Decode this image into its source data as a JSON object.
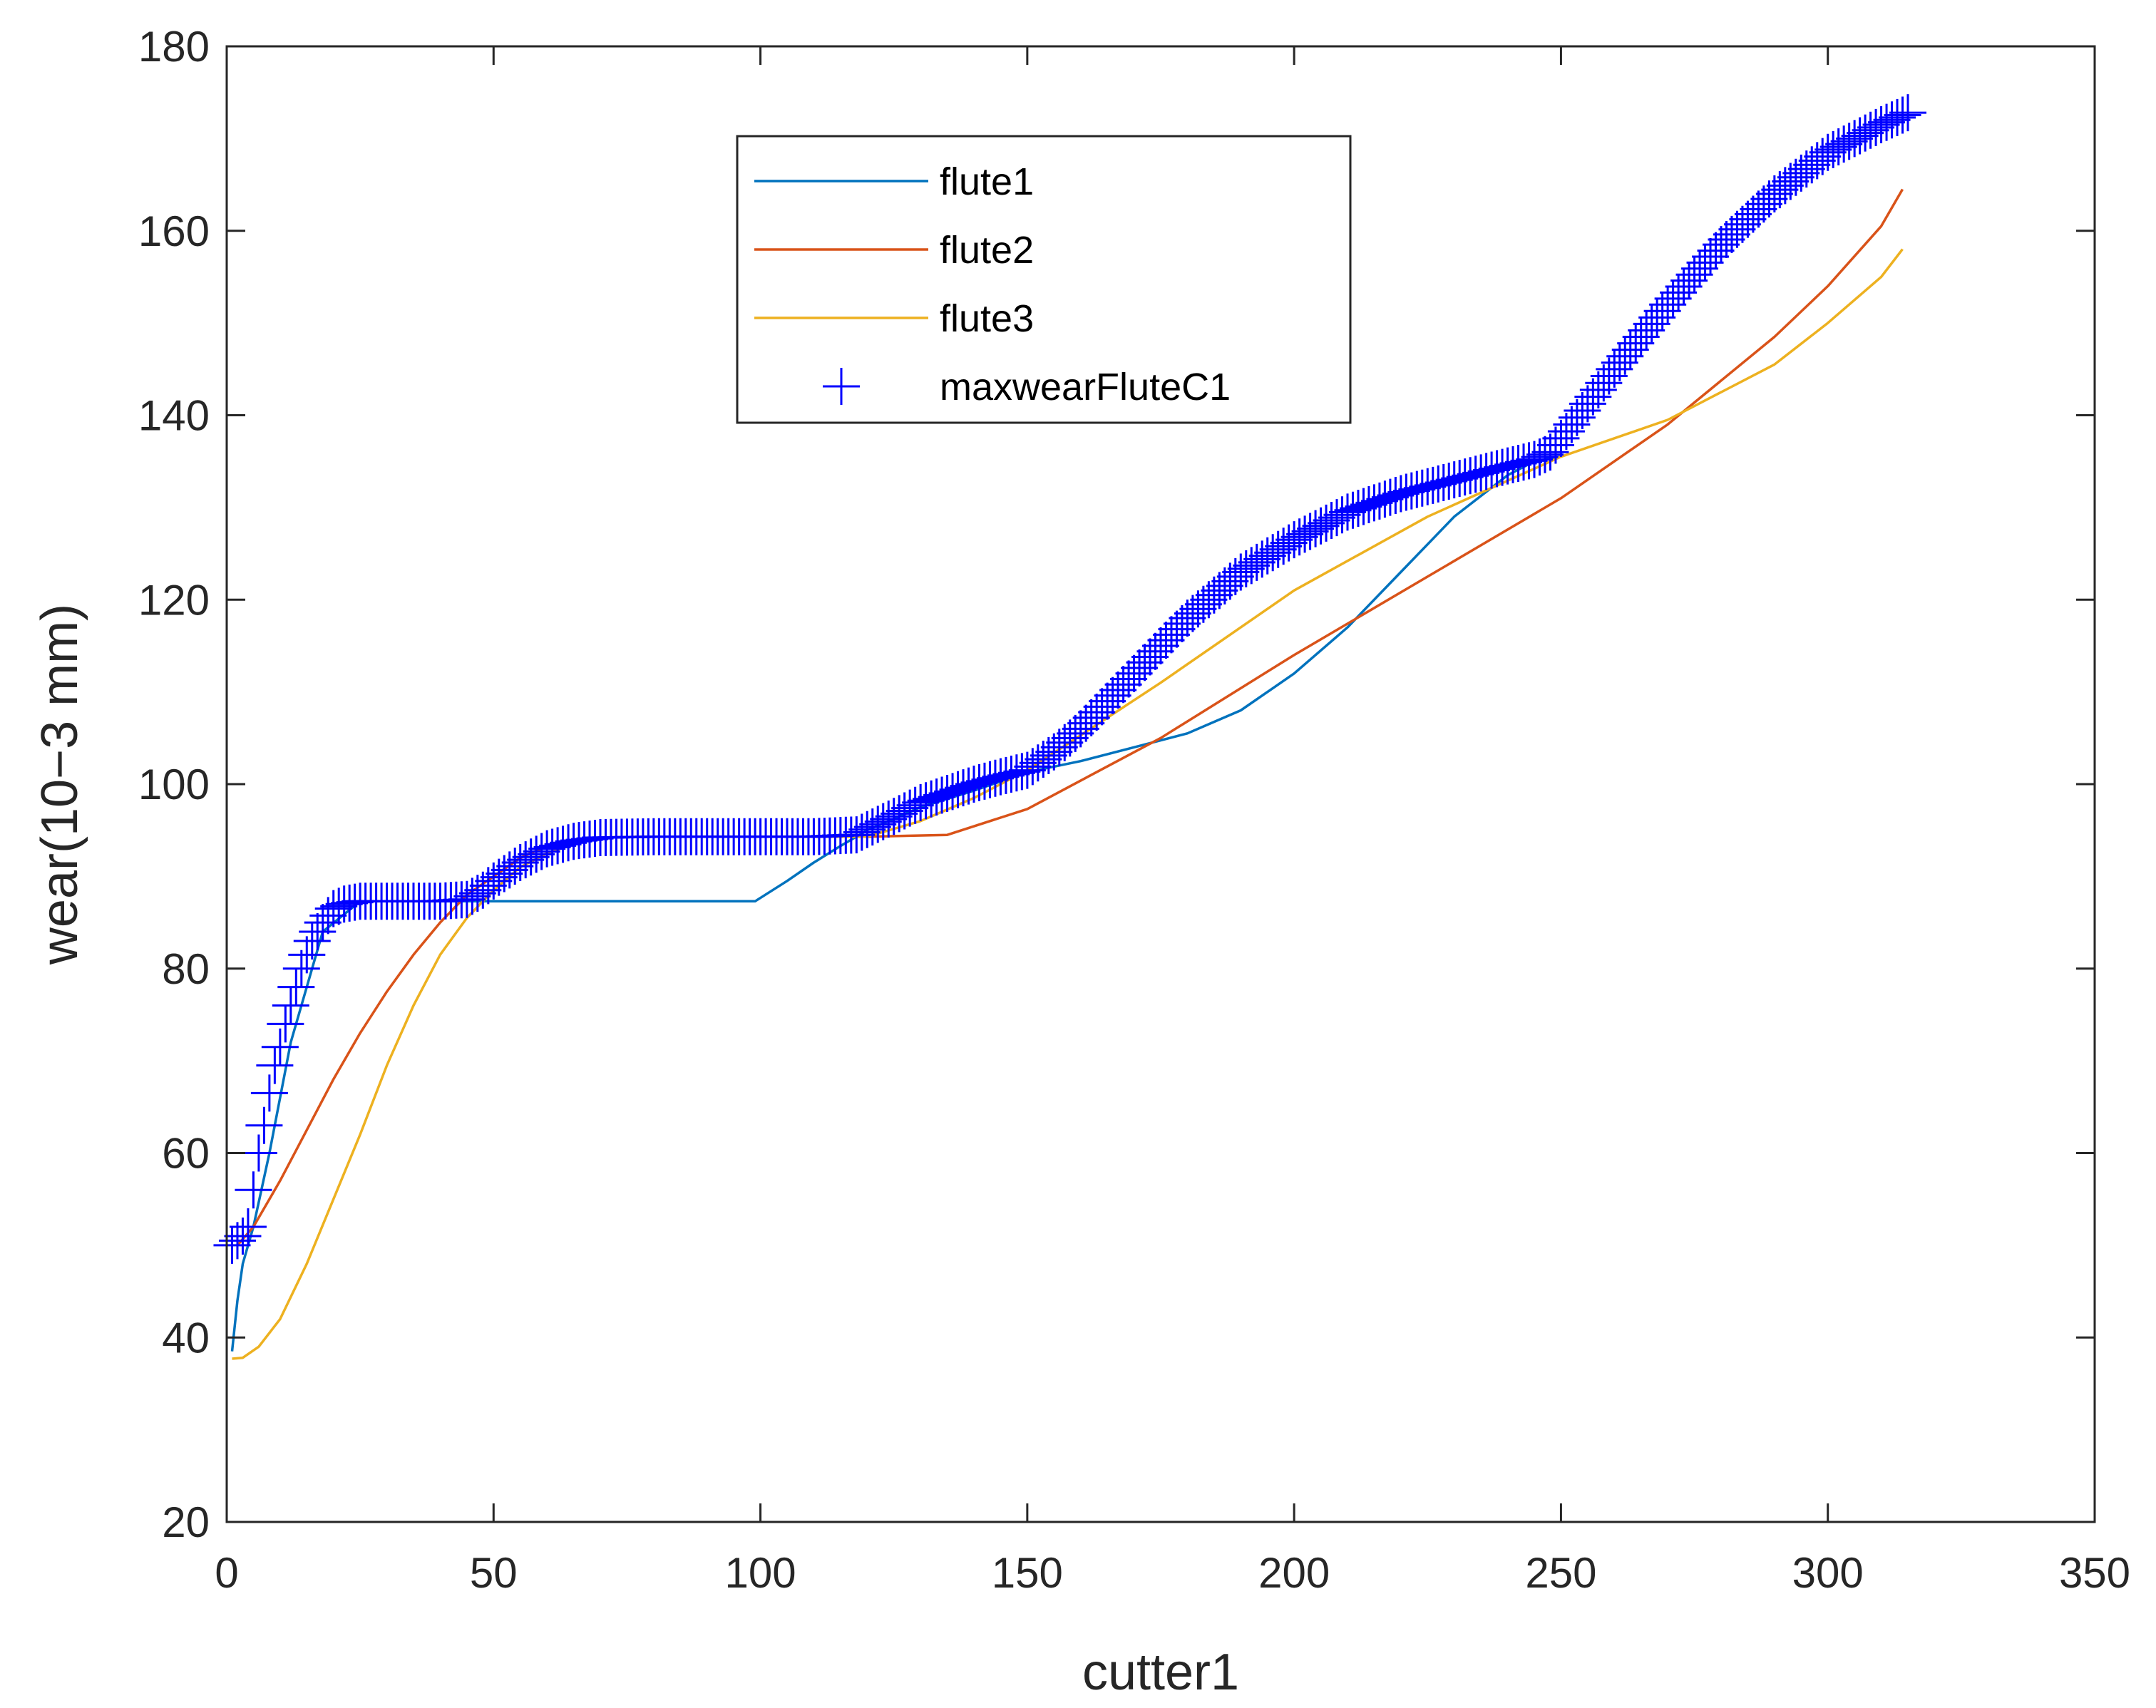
{
  "chart_data": {
    "type": "line",
    "xlabel": "cutter1",
    "ylabel": "wear(10−3 mm)",
    "xlim": [
      0,
      350
    ],
    "ylim": [
      20,
      180
    ],
    "xticks": [
      0,
      50,
      100,
      150,
      200,
      250,
      300,
      350
    ],
    "yticks": [
      20,
      40,
      60,
      80,
      100,
      120,
      140,
      160,
      180
    ],
    "grid": false,
    "legend_position": "top-center",
    "series": [
      {
        "name": "flute1",
        "color": "#0072bd",
        "style": "line",
        "x": [
          1,
          2,
          3,
          5,
          8,
          12,
          18,
          25,
          35,
          50,
          70,
          99,
          105,
          110,
          115,
          120,
          130,
          140,
          150,
          160,
          170,
          180,
          190,
          200,
          210,
          220,
          230,
          240,
          245,
          250
        ],
        "y": [
          38.5,
          44,
          48,
          52,
          60,
          72,
          84,
          87.3,
          87.3,
          87.3,
          87.3,
          87.3,
          89.5,
          91.5,
          93.3,
          95,
          97.5,
          99.3,
          101.3,
          102.5,
          104,
          105.5,
          108,
          112,
          117,
          123,
          129,
          133.5,
          135,
          135.5
        ]
      },
      {
        "name": "flute2",
        "color": "#d95319",
        "style": "line",
        "x": [
          2,
          5,
          10,
          15,
          20,
          25,
          30,
          35,
          40,
          45,
          50,
          55,
          60,
          70,
          80,
          100,
          120,
          135,
          150,
          175,
          200,
          225,
          250,
          270,
          290,
          300,
          310,
          314
        ],
        "y": [
          50,
          52,
          57,
          62.5,
          68,
          73,
          77.5,
          81.5,
          85,
          88,
          90,
          92,
          93.3,
          94.2,
          94.3,
          94.3,
          94.3,
          94.5,
          97.3,
          105,
          114,
          122.5,
          131,
          139,
          148.5,
          154,
          160.5,
          164.5
        ]
      },
      {
        "name": "flute3",
        "color": "#edb120",
        "style": "line",
        "x": [
          1,
          3,
          6,
          10,
          15,
          20,
          25,
          30,
          35,
          40,
          45,
          50,
          55,
          60,
          65,
          70,
          80,
          100,
          120,
          130,
          140,
          150,
          175,
          200,
          225,
          250,
          270,
          290,
          300,
          310,
          314
        ],
        "y": [
          37.7,
          37.8,
          39,
          42,
          48,
          55,
          62,
          69.5,
          76,
          81.5,
          85.5,
          88.5,
          91,
          92.5,
          93.5,
          94.2,
          94.3,
          94.3,
          94.3,
          96,
          98.5,
          101.5,
          111,
          121,
          129,
          135.5,
          139.5,
          145.5,
          150,
          155,
          158
        ]
      },
      {
        "name": "maxwearFluteC1",
        "color": "#0000ff",
        "style": "marker-plus",
        "x": [
          1,
          2,
          3,
          4,
          5,
          6,
          7,
          8,
          9,
          10,
          11,
          12,
          13,
          14,
          15,
          16,
          18,
          20,
          22,
          25,
          30,
          35,
          40,
          45,
          48,
          50,
          55,
          60,
          65,
          70,
          80,
          90,
          100,
          110,
          118,
          125,
          130,
          135,
          140,
          145,
          150,
          155,
          160,
          165,
          170,
          175,
          180,
          190,
          200,
          210,
          220,
          230,
          240,
          245,
          248,
          252,
          260,
          270,
          280,
          290,
          300,
          310,
          315
        ],
        "y": [
          50,
          50.5,
          51,
          52,
          56,
          60,
          63,
          66.5,
          69.5,
          71.5,
          74,
          76,
          78,
          80,
          81.5,
          83,
          85,
          86.5,
          87,
          87.3,
          87.3,
          87.3,
          87.3,
          87.5,
          88.5,
          89.5,
          91.5,
          93,
          93.8,
          94.2,
          94.3,
          94.3,
          94.3,
          94.3,
          94.5,
          96.5,
          98,
          99,
          100,
          100.8,
          101.5,
          103.5,
          106,
          109,
          112,
          115,
          118,
          123,
          126.5,
          129.5,
          131.5,
          133,
          134.5,
          135.2,
          136,
          139,
          145,
          152,
          158.5,
          164,
          168.5,
          171.5,
          172.8
        ]
      }
    ]
  }
}
